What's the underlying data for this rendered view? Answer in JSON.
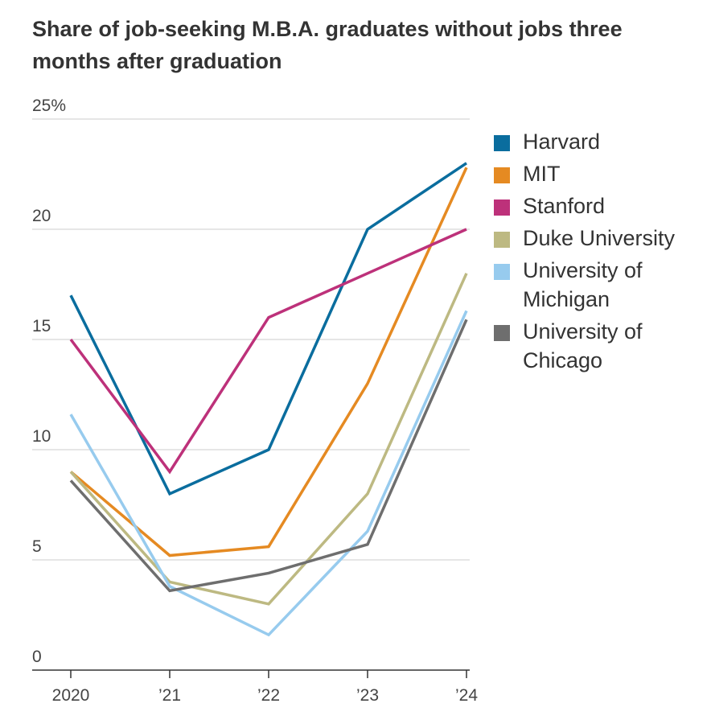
{
  "title": "Share of job-seeking M.B.A. graduates without jobs three months after graduation",
  "chart_data": {
    "type": "line",
    "title": "Share of job-seeking M.B.A. graduates without jobs three months after graduation",
    "categories": [
      "2020",
      "’21",
      "’22",
      "’23",
      "’24"
    ],
    "y_ticks": [
      0,
      5,
      10,
      15,
      20,
      25
    ],
    "y_tick_labels": [
      "0",
      "5",
      "10",
      "15",
      "20",
      "25%"
    ],
    "ylim": [
      0,
      25
    ],
    "xlabel": "",
    "ylabel": "",
    "grid": true,
    "legend_position": "right",
    "series": [
      {
        "name": "Harvard",
        "color": "#0a6d9e",
        "values": [
          17,
          8,
          10,
          20,
          23
        ]
      },
      {
        "name": "MIT",
        "color": "#e58a22",
        "values": [
          9,
          5.2,
          5.6,
          13,
          22.8
        ]
      },
      {
        "name": "Stanford",
        "color": "#bd317a",
        "values": [
          15,
          9,
          16,
          18,
          20
        ]
      },
      {
        "name": "Duke University",
        "color": "#bdb982",
        "values": [
          9,
          4,
          3,
          8,
          18
        ]
      },
      {
        "name": "University of Michigan",
        "color": "#97cbee",
        "values": [
          11.6,
          3.8,
          1.6,
          6.3,
          16.3
        ]
      },
      {
        "name": "University of Chicago",
        "color": "#6e6e6e",
        "values": [
          8.6,
          3.6,
          4.4,
          5.7,
          15.9
        ]
      }
    ]
  },
  "legend": [
    {
      "label": "Harvard"
    },
    {
      "label": "MIT"
    },
    {
      "label": "Stanford"
    },
    {
      "label": "Duke University"
    },
    {
      "label": "University of Michigan"
    },
    {
      "label": "University of Chicago"
    }
  ]
}
